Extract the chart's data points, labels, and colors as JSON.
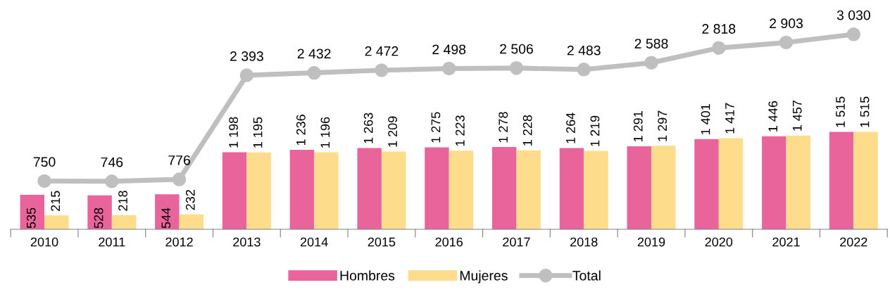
{
  "chart_data": {
    "type": "bar",
    "categories": [
      "2010",
      "2011",
      "2012",
      "2013",
      "2014",
      "2015",
      "2016",
      "2017",
      "2018",
      "2019",
      "2020",
      "2021",
      "2022"
    ],
    "series": [
      {
        "name": "Hombres",
        "color": "#e8649b",
        "values": [
          535,
          528,
          544,
          1198,
          1236,
          1263,
          1275,
          1278,
          1264,
          1291,
          1401,
          1446,
          1515
        ],
        "value_labels": [
          "535",
          "528",
          "544",
          "1 198",
          "1 236",
          "1 263",
          "1 275",
          "1 278",
          "1 264",
          "1 291",
          "1 401",
          "1 446",
          "1 515"
        ]
      },
      {
        "name": "Mujeres",
        "color": "#fddc8c",
        "values": [
          215,
          218,
          232,
          1195,
          1196,
          1209,
          1223,
          1228,
          1219,
          1297,
          1417,
          1457,
          1515
        ],
        "value_labels": [
          "215",
          "218",
          "232",
          "1 195",
          "1 196",
          "1 209",
          "1 223",
          "1 228",
          "1 219",
          "1 297",
          "1 417",
          "1 457",
          "1 515"
        ]
      },
      {
        "name": "Total",
        "type": "line",
        "color": "#bfbfbf",
        "marker": "circle",
        "values": [
          750,
          746,
          776,
          2393,
          2432,
          2472,
          2498,
          2506,
          2483,
          2588,
          2818,
          2903,
          3030
        ],
        "value_labels": [
          "750",
          "746",
          "776",
          "2 393",
          "2 432",
          "2 472",
          "2 498",
          "2 506",
          "2 483",
          "2 588",
          "2 818",
          "2 903",
          "3 030"
        ]
      }
    ],
    "tick_labels": "x",
    "grid": false,
    "legend": "bottom"
  }
}
